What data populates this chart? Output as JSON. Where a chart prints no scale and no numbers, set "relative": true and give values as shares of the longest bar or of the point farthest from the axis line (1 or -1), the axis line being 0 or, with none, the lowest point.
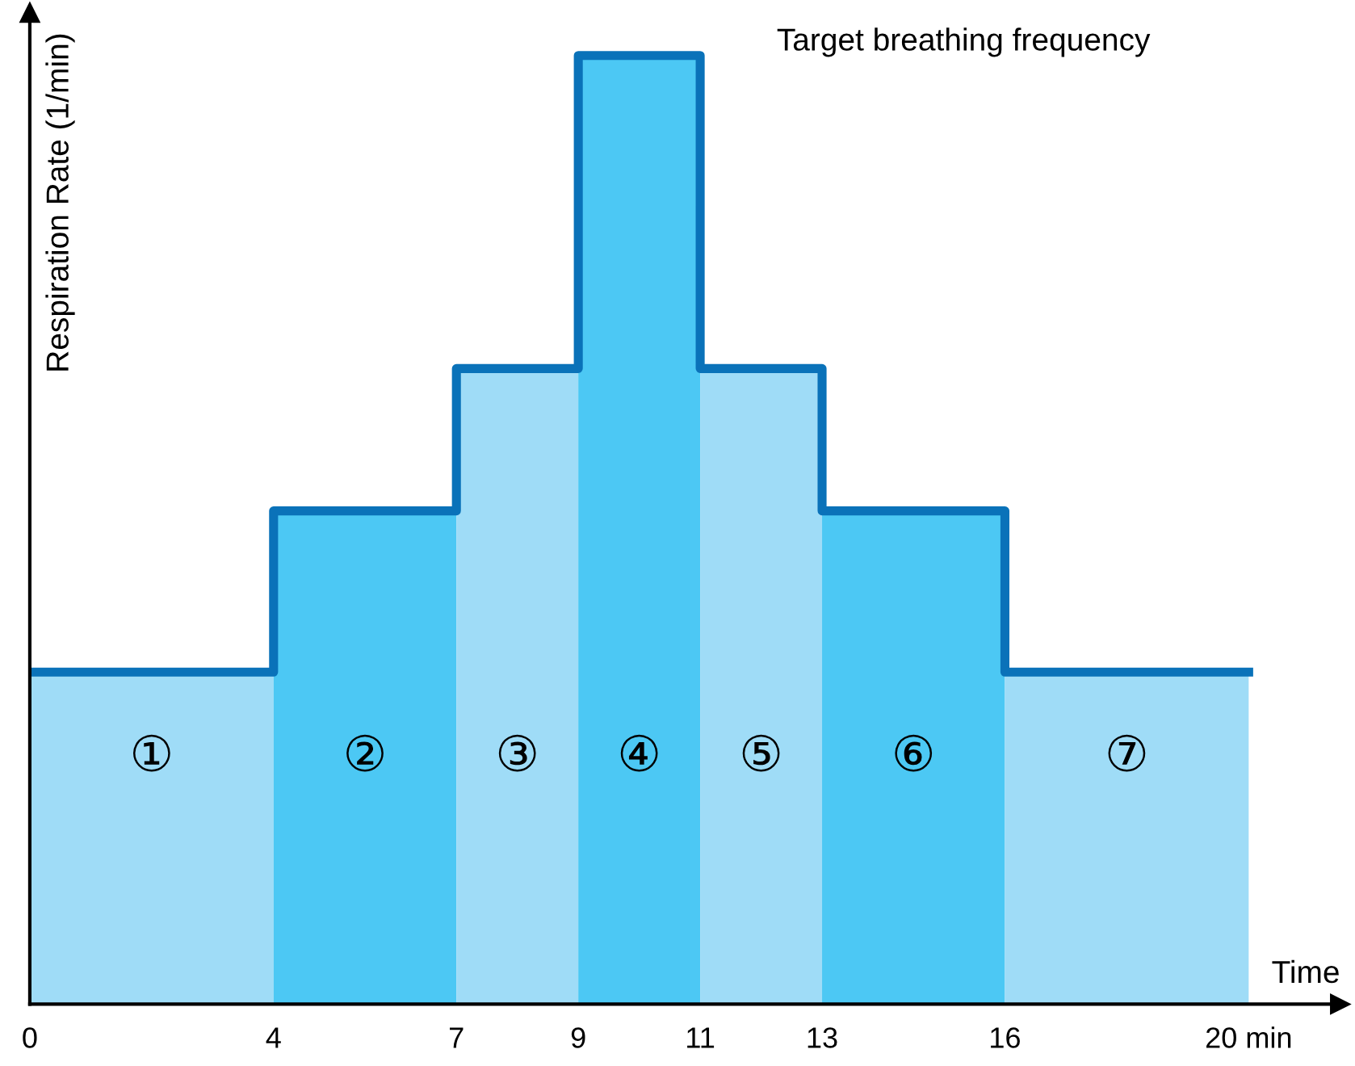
{
  "chart_data": {
    "type": "step",
    "relative": true,
    "xlabel": "Time",
    "ylabel": "Respiration Rate (1/min)",
    "x": [
      0,
      4,
      7,
      9,
      11,
      13,
      16,
      20
    ],
    "series": [
      {
        "type": "area",
        "color": "#9fdcf7",
        "x": [
          0,
          4
        ],
        "values": [
          0.35,
          0.35
        ]
      },
      {
        "type": "area",
        "color": "#4cc8f4",
        "x": [
          4,
          7
        ],
        "values": [
          0.52,
          0.52
        ]
      },
      {
        "type": "area",
        "color": "#9fdcf7",
        "x": [
          7,
          9
        ],
        "values": [
          0.67,
          0.67
        ]
      },
      {
        "type": "area",
        "color": "#4cc8f4",
        "x": [
          9,
          11
        ],
        "values": [
          1,
          1
        ]
      },
      {
        "type": "area",
        "color": "#9fdcf7",
        "x": [
          11,
          13
        ],
        "values": [
          0.67,
          0.67
        ]
      },
      {
        "type": "area",
        "color": "#4cc8f4",
        "x": [
          13,
          16
        ],
        "values": [
          0.52,
          0.52
        ]
      },
      {
        "type": "area",
        "color": "#9fdcf7",
        "x": [
          16,
          20
        ],
        "values": [
          0.35,
          0.35
        ]
      },
      {
        "color": "#0a72b9",
        "values": [
          0.35,
          0.52,
          0.67,
          1,
          0.67,
          0.52,
          0.35,
          0.35
        ]
      }
    ],
    "xlim": [
      0,
      21.5
    ],
    "xticks": [
      0,
      4,
      7,
      9,
      11,
      13,
      16,
      {
        "value": 20,
        "label": "20 min"
      }
    ],
    "tick_labels": "x",
    "annotations": [
      "①",
      "②",
      "③",
      "④",
      "⑤",
      "⑥",
      "⑦",
      "Target breathing frequency"
    ]
  }
}
